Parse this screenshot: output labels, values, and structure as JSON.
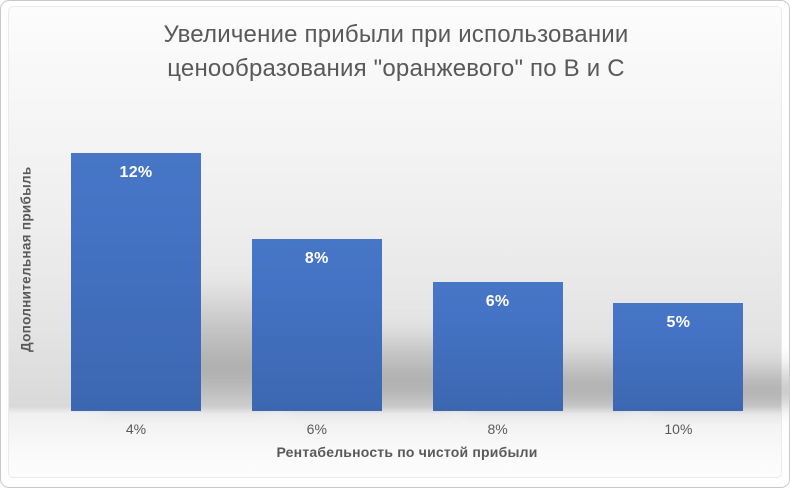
{
  "chart": {
    "title_lines": [
      "Увеличение прибыли при использовании",
      "ценообразования \"оранжевого\" по B и C"
    ],
    "y_axis_title": "Дополнительная прибыль",
    "x_axis_title": "Рентабельность по чистой прибыли"
  },
  "chart_data": {
    "type": "bar",
    "title": "Увеличение прибыли при использовании ценообразования \"оранжевого\" по B и C",
    "xlabel": "Рентабельность по чистой прибыли",
    "ylabel": "Дополнительная прибыль",
    "categories": [
      "4%",
      "6%",
      "8%",
      "10%"
    ],
    "values": [
      12,
      8,
      6,
      5
    ],
    "data_labels": [
      "12%",
      "8%",
      "6%",
      "5%"
    ],
    "ylim": [
      0,
      13
    ],
    "grid": false,
    "legend": "none",
    "colors": {
      "bar": "#4472C4",
      "data_label": "#FFFFFF",
      "text": "#595959",
      "frame_border": "#C9C9C9"
    }
  }
}
